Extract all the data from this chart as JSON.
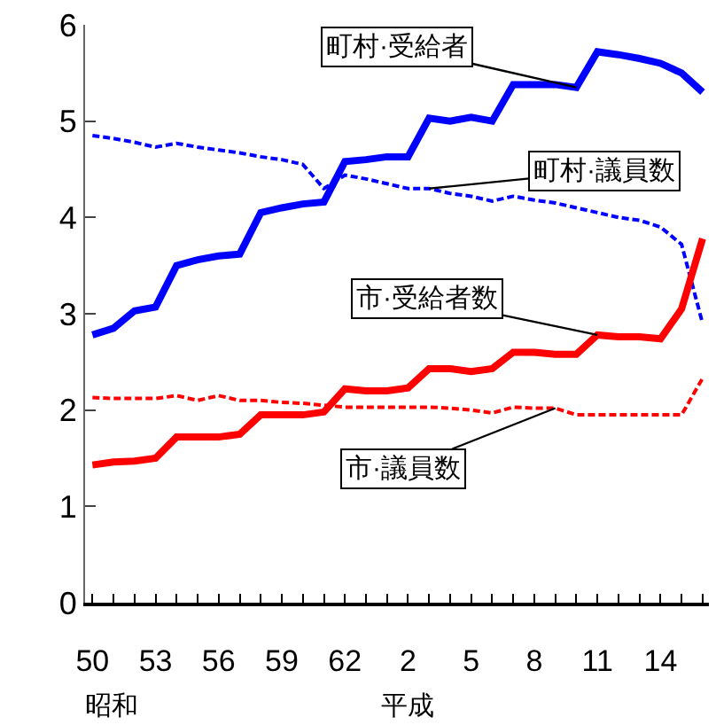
{
  "chart_data": {
    "type": "line",
    "categories": [
      "50",
      null,
      null,
      "53",
      null,
      null,
      "56",
      null,
      null,
      "59",
      null,
      null,
      "62",
      null,
      null,
      "2",
      null,
      null,
      "5",
      null,
      null,
      "8",
      null,
      null,
      "11",
      null,
      null,
      "14",
      null,
      null
    ],
    "ylim": [
      0,
      6
    ],
    "yticks": [
      0,
      1,
      2,
      3,
      4,
      5,
      6
    ],
    "marker": "none",
    "series": [
      {
        "name": "町村·受給者",
        "color": "#0000ff",
        "line_style": "solid",
        "values": [
          2.78,
          2.85,
          3.03,
          3.07,
          3.5,
          3.56,
          3.6,
          3.62,
          4.05,
          4.1,
          4.14,
          4.16,
          4.58,
          4.6,
          4.63,
          4.63,
          5.03,
          5.0,
          5.04,
          5.0,
          5.38,
          5.38,
          5.38,
          5.35,
          5.72,
          5.69,
          5.65,
          5.6,
          5.5,
          5.3
        ]
      },
      {
        "name": "町村·議員数",
        "color": "#0000ff",
        "line_style": "dashed",
        "values": [
          4.85,
          4.82,
          4.78,
          4.73,
          4.77,
          4.73,
          4.7,
          4.67,
          4.63,
          4.6,
          4.55,
          4.3,
          4.44,
          4.4,
          4.35,
          4.3,
          4.3,
          4.25,
          4.22,
          4.17,
          4.22,
          4.18,
          4.15,
          4.1,
          4.05,
          4.0,
          3.97,
          3.9,
          3.72,
          2.9
        ]
      },
      {
        "name": "市·受給者数",
        "color": "#ff0000",
        "line_style": "solid",
        "values": [
          1.43,
          1.46,
          1.47,
          1.5,
          1.72,
          1.72,
          1.72,
          1.75,
          1.95,
          1.95,
          1.95,
          1.98,
          2.22,
          2.2,
          2.2,
          2.23,
          2.43,
          2.43,
          2.4,
          2.43,
          2.6,
          2.6,
          2.58,
          2.58,
          2.78,
          2.76,
          2.76,
          2.74,
          3.05,
          3.78
        ]
      },
      {
        "name": "市·議員数",
        "color": "#ff0000",
        "line_style": "dashed",
        "values": [
          2.13,
          2.12,
          2.12,
          2.12,
          2.15,
          2.1,
          2.15,
          2.1,
          2.1,
          2.08,
          2.07,
          2.05,
          2.03,
          2.03,
          2.03,
          2.03,
          2.03,
          2.02,
          2.0,
          1.97,
          2.03,
          2.02,
          2.02,
          1.95,
          1.95,
          1.95,
          1.95,
          1.95,
          1.95,
          2.33
        ]
      }
    ],
    "annotations": [
      "昭和",
      "平成"
    ]
  }
}
